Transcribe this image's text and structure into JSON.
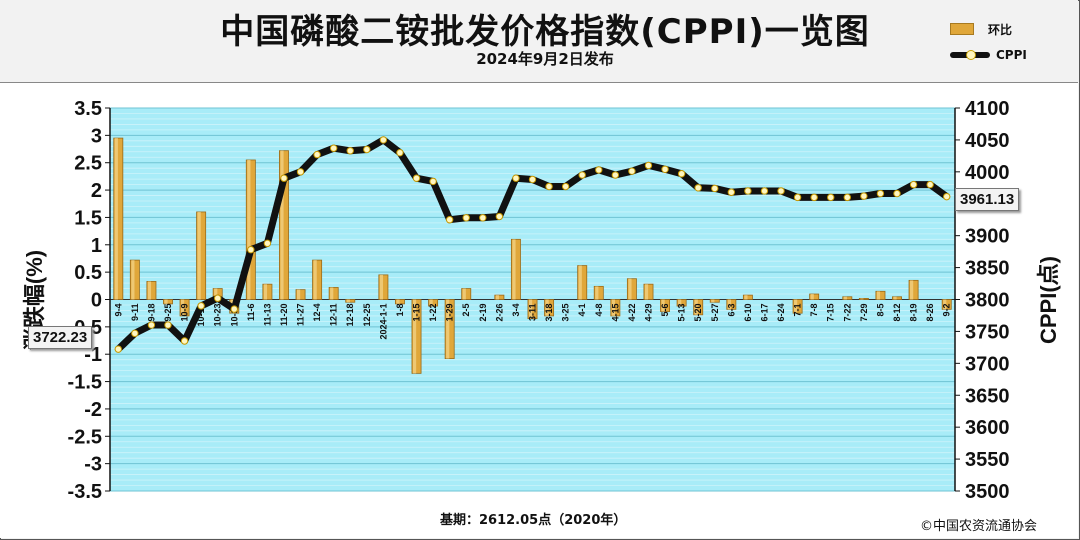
{
  "header": {
    "title": "中国磷酸二铵批发价格指数(CPPI)一览图",
    "subtitle": "2024年9月2日发布"
  },
  "legend": {
    "bar_label": "环比",
    "line_label": "CPPI"
  },
  "footer": {
    "base_note": "基期：2612.05点（2020年）",
    "copyright": "©中国农资流通协会"
  },
  "callouts": {
    "first_value": "3722.23",
    "last_value": "3961.13"
  },
  "chart_data": {
    "type": "bar+line",
    "title": "中国磷酸二铵批发价格指数(CPPI)一览图",
    "subtitle": "2024年9月2日发布",
    "ylabel_left": "涨跌幅(%)",
    "ylabel_right": "CPPI(点)",
    "ylim_left": [
      -3.5,
      3.5
    ],
    "yticks_left": [
      "3.5",
      "3",
      "2.5",
      "2",
      "1.5",
      "1",
      "0.5",
      "0",
      "-0.5",
      "-1",
      "-1.5",
      "-2",
      "-2.5",
      "-3",
      "-3.5"
    ],
    "ylim_right": [
      3500,
      4100
    ],
    "yticks_right": [
      "4100",
      "4050",
      "4000",
      "3950",
      "3900",
      "3850",
      "3800",
      "3750",
      "3700",
      "3650",
      "3600",
      "3550",
      "3500"
    ],
    "grid": "horizontal",
    "legend_position": "top-right",
    "categories": [
      "9-4",
      "9-11",
      "9-18",
      "9-25",
      "10-9",
      "10-16",
      "10-23",
      "10-30",
      "11-6",
      "11-13",
      "11-20",
      "11-27",
      "12-4",
      "12-11",
      "12-18",
      "12-25",
      "2024-1-1",
      "1-8",
      "1-15",
      "1-22",
      "1-29",
      "2-5",
      "2-19",
      "2-26",
      "3-4",
      "3-11",
      "3-18",
      "3-25",
      "4-1",
      "4-8",
      "4-15",
      "4-22",
      "4-29",
      "5-6",
      "5-13",
      "5-20",
      "5-27",
      "6-3",
      "6-10",
      "6-17",
      "6-24",
      "7-1",
      "7-8",
      "7-15",
      "7-22",
      "7-29",
      "8-5",
      "8-12",
      "8-19",
      "8-26",
      "9-2"
    ],
    "series": [
      {
        "name": "环比",
        "kind": "bar",
        "color": "#e0a73a",
        "values": [
          2.95,
          0.72,
          0.33,
          -0.08,
          -0.3,
          1.6,
          0.2,
          -0.25,
          2.55,
          0.28,
          2.72,
          0.18,
          0.72,
          0.22,
          -0.05,
          0.0,
          0.45,
          -0.08,
          -1.35,
          -0.12,
          -1.08,
          0.2,
          0.0,
          0.08,
          1.1,
          -0.35,
          -0.3,
          0.0,
          0.62,
          0.24,
          -0.3,
          0.38,
          0.28,
          -0.22,
          -0.12,
          -0.28,
          -0.05,
          -0.18,
          0.08,
          0.0,
          0.0,
          -0.25,
          0.1,
          0.0,
          0.05,
          0.02,
          0.15,
          0.05,
          0.35,
          0.0,
          -0.18
        ]
      },
      {
        "name": "CPPI",
        "kind": "line",
        "color": "#111111",
        "values": [
          3722.23,
          3747,
          3760,
          3760,
          3735,
          3790,
          3802,
          3785,
          3878,
          3888,
          3990,
          4000,
          4027,
          4037,
          4033,
          4035,
          4050,
          4030,
          3990,
          3985,
          3925,
          3928,
          3928,
          3930,
          3990,
          3988,
          3977,
          3977,
          3995,
          4003,
          3995,
          4001,
          4010,
          4004,
          3997,
          3975,
          3974,
          3968,
          3970,
          3970,
          3970,
          3960,
          3960,
          3960,
          3960,
          3962,
          3966,
          3966,
          3980,
          3980,
          3961.13
        ]
      }
    ]
  }
}
